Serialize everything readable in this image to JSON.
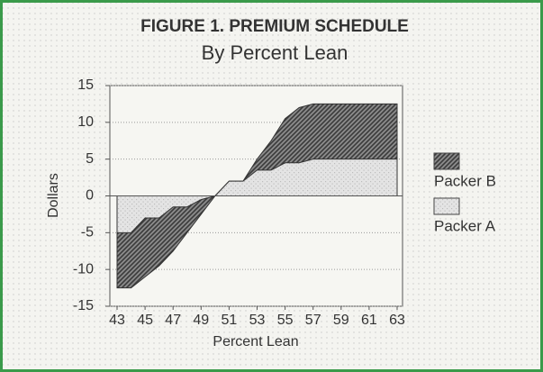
{
  "chart_data": {
    "type": "area",
    "title": "FIGURE 1. PREMIUM SCHEDULE",
    "subtitle": "By Percent Lean",
    "x_label": "Percent Lean",
    "y_label": "Dollars",
    "x": [
      43,
      44,
      45,
      46,
      47,
      48,
      49,
      50,
      51,
      52,
      53,
      54,
      55,
      56,
      57,
      58,
      59,
      60,
      61,
      62,
      63
    ],
    "series": [
      {
        "name": "Packer B",
        "color": "#3a3a3a",
        "values": [
          -12.5,
          -12.5,
          -11,
          -9.5,
          -7.5,
          -5,
          -2.5,
          0,
          2,
          2,
          5,
          7.5,
          10.5,
          12,
          12.5,
          12.5,
          12.5,
          12.5,
          12.5,
          12.5,
          12.5
        ]
      },
      {
        "name": "Packer A",
        "color": "#bdbdbd",
        "values": [
          -5,
          -5,
          -3,
          -3,
          -1.5,
          -1.5,
          -0.5,
          0,
          2,
          2,
          3.5,
          3.5,
          4.5,
          4.5,
          5,
          5,
          5,
          5,
          5,
          5,
          5
        ]
      }
    ],
    "xlim": [
      43,
      63
    ],
    "xticks": [
      43,
      45,
      47,
      49,
      51,
      53,
      55,
      57,
      59,
      61,
      63
    ],
    "ylim": [
      -15,
      15
    ],
    "yticks": [
      -15,
      -10,
      -5,
      0,
      5,
      10,
      15
    ],
    "grid": true,
    "legend": "right"
  }
}
